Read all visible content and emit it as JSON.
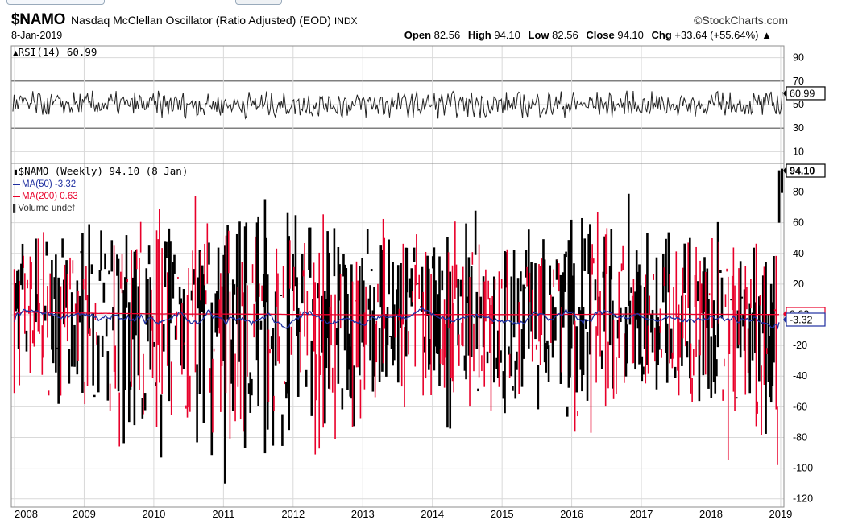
{
  "header": {
    "symbol": "$NAMO",
    "name": "Nasdaq McClellan Oscillator (Ratio Adjusted) (EOD)",
    "exchange": "INDX",
    "brand": "©StockCharts.com",
    "date": "8-Jan-2019",
    "open_label": "Open",
    "open": "82.56",
    "high_label": "High",
    "high": "94.10",
    "low_label": "Low",
    "low": "82.56",
    "close_label": "Close",
    "close": "94.10",
    "chg_label": "Chg",
    "chg": "+33.64 (+55.64%)",
    "chg_arrow": "▲"
  },
  "rsi_panel": {
    "legend": "RSI(14) 60.99",
    "last_value_label": "60.99",
    "current": 60.99,
    "overbought": 70,
    "oversold": 30,
    "ticks": [
      "90",
      "70",
      "50",
      "30",
      "10"
    ]
  },
  "price_panel": {
    "legend_main": "$NAMO (Weekly) 94.10 (8 Jan)",
    "legend_ma50": "MA(50) -3.32",
    "legend_ma200": "MA(200) 0.63",
    "legend_volume": "Volume undef",
    "last_value_label": "94.10",
    "ma50_value_label": "-3.32",
    "ma200_value_label": "0.63",
    "ticks": [
      "80",
      "60",
      "40",
      "20",
      "0",
      "-20",
      "-40",
      "-60",
      "-80",
      "-100",
      "-120"
    ]
  },
  "x_axis": {
    "years": [
      "2008",
      "2009",
      "2010",
      "2011",
      "2012",
      "2013",
      "2014",
      "2015",
      "2016",
      "2017",
      "2018",
      "2019"
    ]
  },
  "colors": {
    "up_bar": "#000000",
    "down_bar": "#e8002a",
    "ma50": "#1f2fa0",
    "ma200": "#e8002a",
    "grid": "#d9d9d9",
    "panel_border": "#8c8c8c"
  },
  "chart_data": [
    {
      "type": "line",
      "title": "RSI(14) 60.99",
      "series": [
        {
          "name": "RSI(14)",
          "last": 60.99
        }
      ],
      "ylim": [
        0,
        100
      ],
      "reference_lines": [
        70,
        30
      ],
      "x_range": [
        "2008",
        "2019"
      ]
    },
    {
      "type": "candlestick",
      "title": "$NAMO (Weekly) 94.10 (8 Jan)",
      "x_range": [
        "2008",
        "2019"
      ],
      "ylim": [
        -120,
        95
      ],
      "x": [
        "2008",
        "2009",
        "2010",
        "2011",
        "2012",
        "2013",
        "2014",
        "2015",
        "2016",
        "2017",
        "2018",
        "2019"
      ],
      "series": [
        {
          "name": "$NAMO",
          "last_close": 94.1,
          "approx_high": [
            65,
            70,
            83,
            90,
            80,
            68,
            75,
            70,
            90,
            67,
            68,
            94.1
          ],
          "approx_low": [
            -75,
            -118,
            -112,
            -118,
            -100,
            -85,
            -82,
            -90,
            -90,
            -72,
            -100,
            -98
          ]
        },
        {
          "name": "MA(50)",
          "last": -3.32
        },
        {
          "name": "MA(200)",
          "last": 0.63
        }
      ],
      "legend_placement": "top-left",
      "grid": true
    }
  ]
}
